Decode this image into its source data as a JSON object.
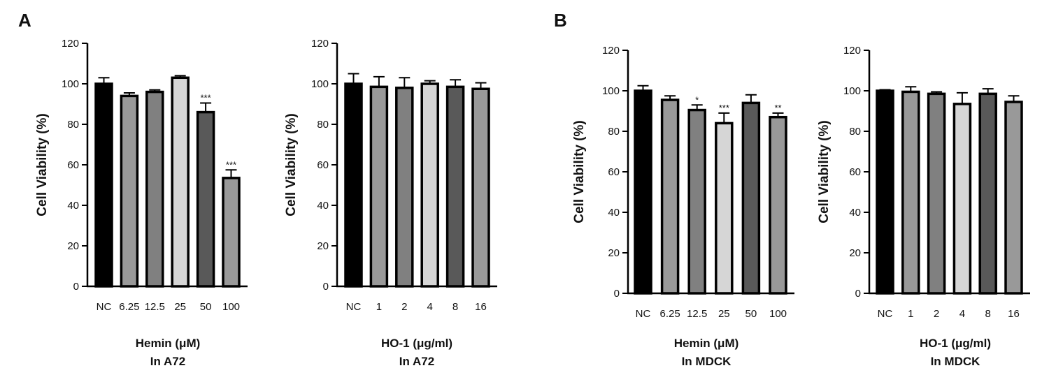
{
  "panel_labels": [
    "A",
    "B"
  ],
  "chart_data": [
    {
      "type": "bar",
      "panel": "A",
      "ylabel": "Cell Viability (%)",
      "xlabel_line1": "Hemin (μM)",
      "xlabel_line2": "In A72",
      "ylim": [
        0,
        120
      ],
      "yticks": [
        0,
        20,
        40,
        60,
        80,
        100,
        120
      ],
      "categories": [
        "NC",
        "6.25",
        "12.5",
        "25",
        "50",
        "100"
      ],
      "values": [
        100,
        94,
        96,
        103,
        86,
        53.5
      ],
      "errors": [
        3,
        1.5,
        1,
        1,
        4.5,
        4
      ],
      "significance": [
        "",
        "",
        "",
        "",
        "***",
        "***"
      ],
      "colors": [
        "#000000",
        "#999999",
        "#808080",
        "#d6d6d6",
        "#595959",
        "#999999"
      ]
    },
    {
      "type": "bar",
      "panel": "A",
      "ylabel": "Cell Viability (%)",
      "xlabel_line1": "HO-1 (μg/ml)",
      "xlabel_line2": "In A72",
      "ylim": [
        0,
        120
      ],
      "yticks": [
        0,
        20,
        40,
        60,
        80,
        100,
        120
      ],
      "categories": [
        "NC",
        "1",
        "2",
        "4",
        "8",
        "16"
      ],
      "values": [
        100,
        98.5,
        98,
        100,
        98.5,
        97.5
      ],
      "errors": [
        5,
        5,
        5,
        1.5,
        3.5,
        3
      ],
      "significance": [
        "",
        "",
        "",
        "",
        "",
        ""
      ],
      "colors": [
        "#000000",
        "#999999",
        "#808080",
        "#d6d6d6",
        "#595959",
        "#999999"
      ]
    },
    {
      "type": "bar",
      "panel": "B",
      "ylabel": "Cell Viability (%)",
      "xlabel_line1": "Hemin (μM)",
      "xlabel_line2": "In MDCK",
      "ylim": [
        0,
        120
      ],
      "yticks": [
        0,
        20,
        40,
        60,
        80,
        100,
        120
      ],
      "categories": [
        "NC",
        "6.25",
        "12.5",
        "25",
        "50",
        "100"
      ],
      "values": [
        100,
        95.5,
        90.5,
        84,
        94,
        87
      ],
      "errors": [
        2.5,
        2,
        2.5,
        5,
        4,
        2
      ],
      "significance": [
        "",
        "",
        "*",
        "***",
        "",
        "**"
      ],
      "colors": [
        "#000000",
        "#999999",
        "#808080",
        "#d6d6d6",
        "#595959",
        "#999999"
      ]
    },
    {
      "type": "bar",
      "panel": "B",
      "ylabel": "Cell Viability (%)",
      "xlabel_line1": "HO-1 (μg/ml)",
      "xlabel_line2": "In MDCK",
      "ylim": [
        0,
        120
      ],
      "yticks": [
        0,
        20,
        40,
        60,
        80,
        100,
        120
      ],
      "categories": [
        "NC",
        "1",
        "2",
        "4",
        "8",
        "16"
      ],
      "values": [
        100,
        99.5,
        98.5,
        93.5,
        98.5,
        94.5
      ],
      "errors": [
        0.5,
        2.5,
        1,
        5.5,
        2.5,
        3
      ],
      "significance": [
        "",
        "",
        "",
        "",
        "",
        ""
      ],
      "colors": [
        "#000000",
        "#999999",
        "#808080",
        "#d6d6d6",
        "#595959",
        "#999999"
      ]
    }
  ]
}
